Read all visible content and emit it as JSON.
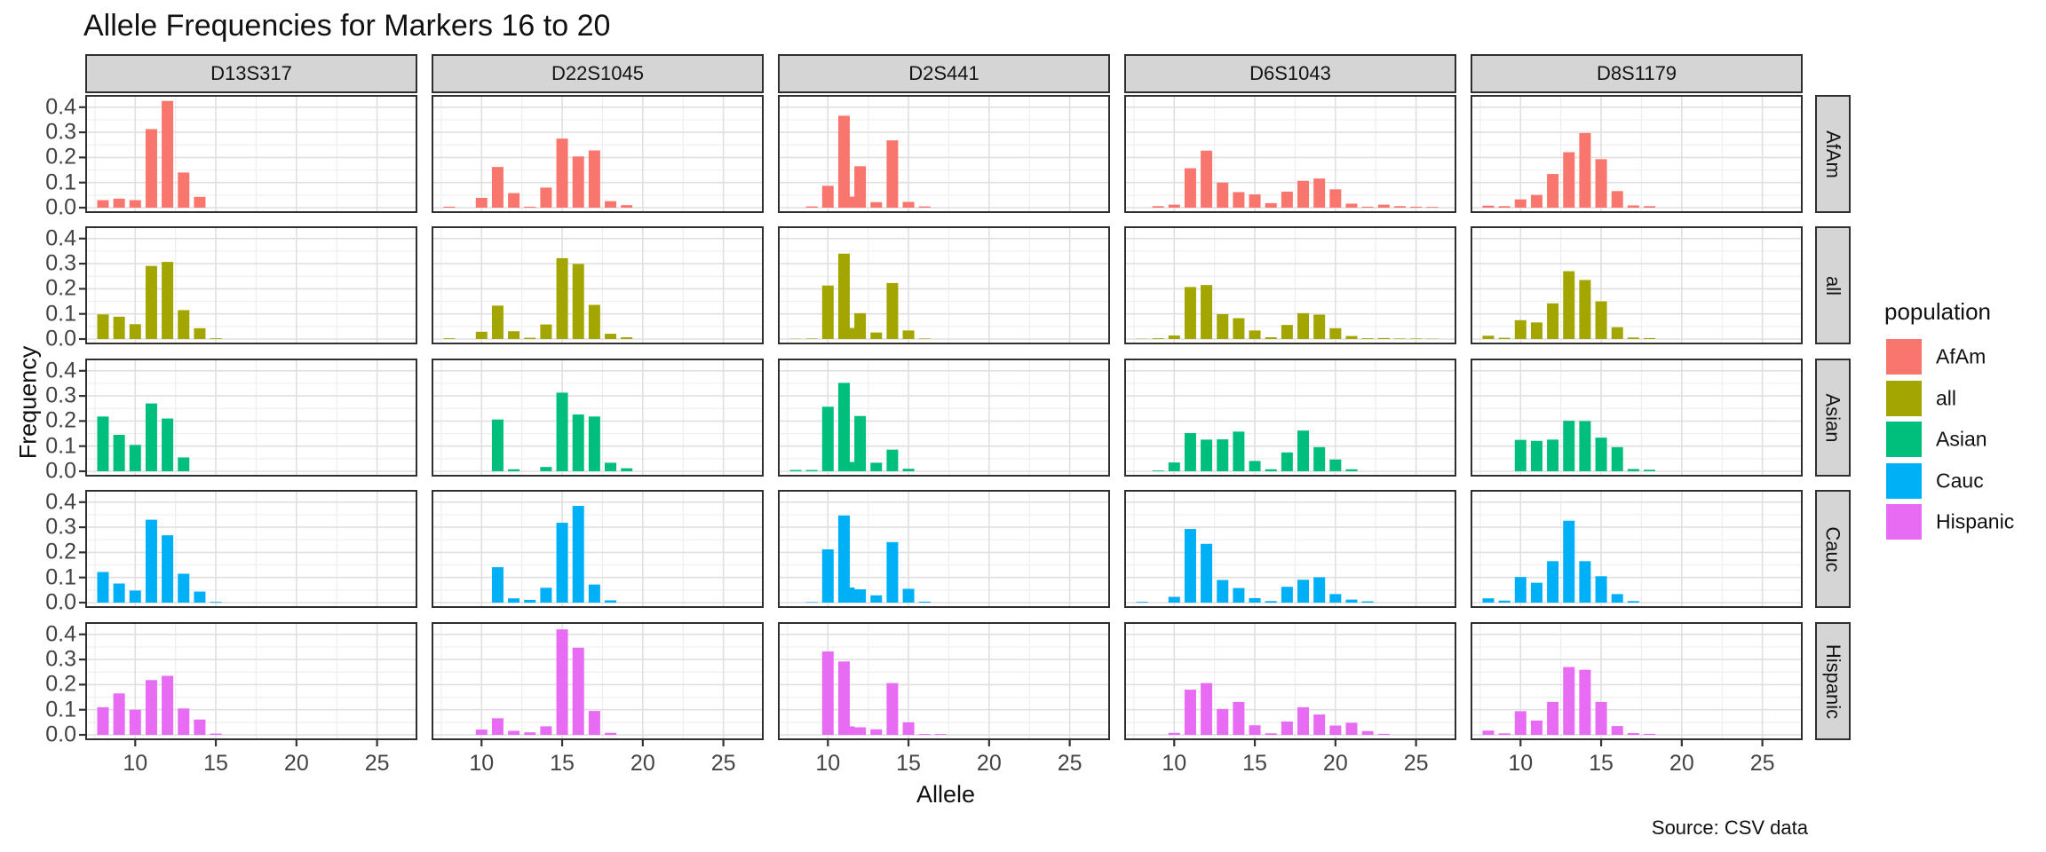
{
  "title": "Allele Frequencies for Markers 16 to 20",
  "source": "Source: CSV data",
  "x_axis": {
    "label": "Allele",
    "ticks": [
      10,
      15,
      20,
      25
    ],
    "minor_ticks": [
      7.5,
      12.5,
      17.5,
      22.5
    ],
    "domain": [
      6.9,
      27.5
    ]
  },
  "y_axis": {
    "label": "Frequency",
    "ticks": [
      0.0,
      0.1,
      0.2,
      0.3,
      0.4
    ],
    "tick_labels": [
      "0.0",
      "0.1",
      "0.2",
      "0.3",
      "0.4"
    ],
    "minor_ticks": [
      0.05,
      0.15,
      0.25,
      0.35
    ],
    "domain": [
      0,
      0.449
    ]
  },
  "legend": {
    "title": "population",
    "entries": [
      {
        "label": "AfAm",
        "color": "#F8766D"
      },
      {
        "label": "all",
        "color": "#A3A500"
      },
      {
        "label": "Asian",
        "color": "#00BF7D"
      },
      {
        "label": "Cauc",
        "color": "#00B0F6"
      },
      {
        "label": "Hispanic",
        "color": "#E76BF3"
      }
    ]
  },
  "chart_data": {
    "type": "bar",
    "title": "Allele Frequencies for Markers 16 to 20",
    "xlabel": "Allele",
    "ylabel": "Frequency",
    "xlim": [
      6.9,
      27.5
    ],
    "ylim": [
      0,
      0.449
    ],
    "grid": "on",
    "legend_position": "right",
    "facet_columns": [
      "D13S317",
      "D22S1045",
      "D2S441",
      "D6S1043",
      "D8S1179"
    ],
    "facet_rows": [
      "AfAm",
      "all",
      "Asian",
      "Cauc",
      "Hispanic"
    ],
    "population_colors": {
      "AfAm": "#F8766D",
      "all": "#A3A500",
      "Asian": "#00BF7D",
      "Cauc": "#00B0F6",
      "Hispanic": "#E76BF3"
    },
    "panels": [
      {
        "marker": "D13S317",
        "population": "AfAm",
        "alleles": [
          8,
          9,
          10,
          11,
          12,
          13,
          14,
          15
        ],
        "frequencies": [
          0.03,
          0.036,
          0.03,
          0.313,
          0.425,
          0.14,
          0.043,
          0
        ]
      },
      {
        "marker": "D13S317",
        "population": "all",
        "alleles": [
          8,
          9,
          10,
          11,
          12,
          13,
          14,
          15
        ],
        "frequencies": [
          0.098,
          0.089,
          0.059,
          0.291,
          0.307,
          0.115,
          0.043,
          0.003
        ]
      },
      {
        "marker": "D13S317",
        "population": "Asian",
        "alleles": [
          8,
          9,
          10,
          11,
          12,
          13,
          14,
          15
        ],
        "frequencies": [
          0.218,
          0.145,
          0.105,
          0.27,
          0.21,
          0.055,
          0,
          0
        ]
      },
      {
        "marker": "D13S317",
        "population": "Cauc",
        "alleles": [
          8,
          9,
          10,
          11,
          12,
          13,
          14,
          15
        ],
        "frequencies": [
          0.122,
          0.076,
          0.048,
          0.33,
          0.268,
          0.115,
          0.044,
          0.003
        ]
      },
      {
        "marker": "D13S317",
        "population": "Hispanic",
        "alleles": [
          8,
          9,
          10,
          11,
          12,
          13,
          14,
          15
        ],
        "frequencies": [
          0.11,
          0.165,
          0.1,
          0.218,
          0.235,
          0.105,
          0.061,
          0.005
        ]
      },
      {
        "marker": "D22S1045",
        "population": "AfAm",
        "alleles": [
          8,
          10,
          11,
          12,
          13,
          14,
          15,
          16,
          17,
          18,
          19
        ],
        "frequencies": [
          0.004,
          0.039,
          0.162,
          0.058,
          0.004,
          0.08,
          0.275,
          0.204,
          0.228,
          0.026,
          0.01
        ]
      },
      {
        "marker": "D22S1045",
        "population": "all",
        "alleles": [
          8,
          10,
          11,
          12,
          13,
          14,
          15,
          16,
          17,
          18,
          19
        ],
        "frequencies": [
          0.003,
          0.029,
          0.133,
          0.031,
          0.005,
          0.058,
          0.322,
          0.299,
          0.136,
          0.021,
          0.007
        ]
      },
      {
        "marker": "D22S1045",
        "population": "Asian",
        "alleles": [
          8,
          10,
          11,
          12,
          13,
          14,
          15,
          16,
          17,
          18,
          19
        ],
        "frequencies": [
          0,
          0,
          0.206,
          0.008,
          0,
          0.017,
          0.313,
          0.226,
          0.218,
          0.034,
          0.012
        ]
      },
      {
        "marker": "D22S1045",
        "population": "Cauc",
        "alleles": [
          8,
          10,
          11,
          12,
          13,
          14,
          15,
          16,
          17,
          18,
          19
        ],
        "frequencies": [
          0,
          0,
          0.141,
          0.017,
          0.011,
          0.059,
          0.318,
          0.385,
          0.072,
          0.009,
          0
        ]
      },
      {
        "marker": "D22S1045",
        "population": "Hispanic",
        "alleles": [
          8,
          10,
          11,
          12,
          13,
          14,
          15,
          16,
          17,
          18,
          19
        ],
        "frequencies": [
          0,
          0.021,
          0.066,
          0.016,
          0.01,
          0.034,
          0.42,
          0.347,
          0.095,
          0.008,
          0
        ]
      },
      {
        "marker": "D2S441",
        "population": "AfAm",
        "alleles": [
          8,
          9,
          10,
          11,
          11.3,
          12,
          13,
          14,
          15,
          16,
          17
        ],
        "frequencies": [
          0,
          0.005,
          0.087,
          0.366,
          0.044,
          0.165,
          0.022,
          0.268,
          0.023,
          0.005,
          0
        ]
      },
      {
        "marker": "D2S441",
        "population": "all",
        "alleles": [
          8,
          9,
          10,
          11,
          11.3,
          12,
          13,
          14,
          15,
          16,
          17
        ],
        "frequencies": [
          0.001,
          0.002,
          0.213,
          0.34,
          0.044,
          0.103,
          0.026,
          0.223,
          0.034,
          0.002,
          0
        ]
      },
      {
        "marker": "D2S441",
        "population": "Asian",
        "alleles": [
          8,
          9,
          10,
          11,
          11.3,
          12,
          13,
          14,
          15,
          16,
          17
        ],
        "frequencies": [
          0.005,
          0.005,
          0.257,
          0.352,
          0.037,
          0.22,
          0.034,
          0.086,
          0.01,
          0,
          0
        ]
      },
      {
        "marker": "D2S441",
        "population": "Cauc",
        "alleles": [
          8,
          9,
          10,
          11,
          11.3,
          12,
          13,
          14,
          15,
          16,
          17
        ],
        "frequencies": [
          0,
          0.002,
          0.212,
          0.347,
          0.06,
          0.053,
          0.029,
          0.241,
          0.055,
          0.004,
          0
        ]
      },
      {
        "marker": "D2S441",
        "population": "Hispanic",
        "alleles": [
          8,
          9,
          10,
          11,
          11.3,
          12,
          13,
          14,
          15,
          16,
          17
        ],
        "frequencies": [
          0,
          0,
          0.332,
          0.292,
          0.034,
          0.03,
          0.022,
          0.206,
          0.05,
          0.003,
          0.003
        ]
      },
      {
        "marker": "D6S1043",
        "population": "AfAm",
        "alleles": [
          8,
          9,
          10,
          11,
          12,
          13,
          14,
          15,
          16,
          17,
          18,
          19,
          20,
          21,
          22,
          23,
          24,
          25,
          26
        ],
        "frequencies": [
          0,
          0.006,
          0.012,
          0.157,
          0.227,
          0.1,
          0.062,
          0.053,
          0.018,
          0.064,
          0.107,
          0.116,
          0.073,
          0.016,
          0.004,
          0.012,
          0.006,
          0.004,
          0.003
        ]
      },
      {
        "marker": "D6S1043",
        "population": "all",
        "alleles": [
          8,
          9,
          10,
          11,
          12,
          13,
          14,
          15,
          16,
          17,
          18,
          19,
          20,
          21,
          22,
          23,
          24,
          25,
          26
        ],
        "frequencies": [
          0.001,
          0.003,
          0.014,
          0.207,
          0.215,
          0.099,
          0.083,
          0.034,
          0.007,
          0.056,
          0.103,
          0.097,
          0.043,
          0.012,
          0.003,
          0.004,
          0.002,
          0.002,
          0.001
        ]
      },
      {
        "marker": "D6S1043",
        "population": "Asian",
        "alleles": [
          8,
          9,
          10,
          11,
          12,
          13,
          14,
          15,
          16,
          17,
          18,
          19,
          20,
          21,
          22,
          23,
          24,
          25,
          26
        ],
        "frequencies": [
          0,
          0.003,
          0.035,
          0.152,
          0.126,
          0.127,
          0.158,
          0.041,
          0.008,
          0.075,
          0.162,
          0.096,
          0.047,
          0.008,
          0,
          0,
          0,
          0,
          0
        ]
      },
      {
        "marker": "D6S1043",
        "population": "Cauc",
        "alleles": [
          8,
          9,
          10,
          11,
          12,
          13,
          14,
          15,
          16,
          17,
          18,
          19,
          20,
          21,
          22,
          23,
          24,
          25,
          26
        ],
        "frequencies": [
          0.003,
          0,
          0.023,
          0.293,
          0.234,
          0.09,
          0.058,
          0.018,
          0.006,
          0.063,
          0.091,
          0.101,
          0.034,
          0.012,
          0.005,
          0,
          0,
          0,
          0
        ]
      },
      {
        "marker": "D6S1043",
        "population": "Hispanic",
        "alleles": [
          8,
          9,
          10,
          11,
          12,
          13,
          14,
          15,
          16,
          17,
          18,
          19,
          20,
          21,
          22,
          23,
          24,
          25,
          26
        ],
        "frequencies": [
          0,
          0,
          0.008,
          0.18,
          0.206,
          0.103,
          0.131,
          0.038,
          0.006,
          0.053,
          0.11,
          0.081,
          0.037,
          0.048,
          0.015,
          0.004,
          0,
          0,
          0
        ]
      },
      {
        "marker": "D8S1179",
        "population": "AfAm",
        "alleles": [
          8,
          9,
          10,
          11,
          12,
          13,
          14,
          15,
          16,
          17,
          18
        ],
        "frequencies": [
          0.008,
          0.006,
          0.033,
          0.051,
          0.134,
          0.221,
          0.297,
          0.193,
          0.066,
          0.009,
          0.006
        ]
      },
      {
        "marker": "D8S1179",
        "population": "all",
        "alleles": [
          8,
          9,
          10,
          11,
          12,
          13,
          14,
          15,
          16,
          17,
          18
        ],
        "frequencies": [
          0.013,
          0.005,
          0.075,
          0.066,
          0.142,
          0.27,
          0.235,
          0.15,
          0.047,
          0.006,
          0.004
        ]
      },
      {
        "marker": "D8S1179",
        "population": "Asian",
        "alleles": [
          8,
          9,
          10,
          11,
          12,
          13,
          14,
          15,
          16,
          17,
          18
        ],
        "frequencies": [
          0,
          0,
          0.125,
          0.121,
          0.126,
          0.201,
          0.2,
          0.134,
          0.096,
          0.009,
          0.006
        ]
      },
      {
        "marker": "D8S1179",
        "population": "Cauc",
        "alleles": [
          8,
          9,
          10,
          11,
          12,
          13,
          14,
          15,
          16,
          17,
          18
        ],
        "frequencies": [
          0.017,
          0.008,
          0.102,
          0.079,
          0.165,
          0.326,
          0.165,
          0.105,
          0.034,
          0.006,
          0
        ]
      },
      {
        "marker": "D8S1179",
        "population": "Hispanic",
        "alleles": [
          8,
          9,
          10,
          11,
          12,
          13,
          14,
          15,
          16,
          17,
          18
        ],
        "frequencies": [
          0.017,
          0.006,
          0.094,
          0.057,
          0.131,
          0.27,
          0.259,
          0.131,
          0.035,
          0.007,
          0.004
        ]
      }
    ]
  }
}
